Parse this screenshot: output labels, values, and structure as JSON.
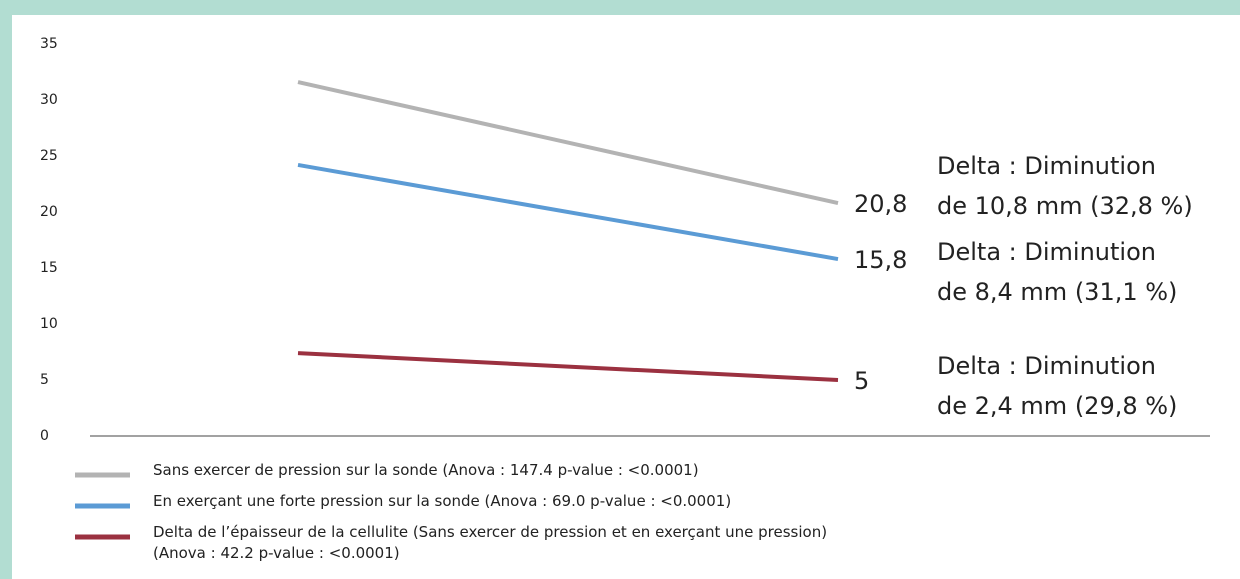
{
  "chart_data": {
    "type": "line",
    "categories": [
      null,
      null
    ],
    "ylim": [
      0,
      35
    ],
    "yticks": [
      0,
      5,
      10,
      15,
      20,
      25,
      30,
      35
    ],
    "grid": false,
    "series": [
      {
        "name": "Sans exercer de pression sur la sonde (Anova : 147.4 p-value : <0.0001)",
        "color": "#b3b3b3",
        "values": [
          31.6,
          20.8
        ],
        "value_labels": [
          null,
          "20,8"
        ],
        "annotation": [
          "Delta : Diminution",
          "de 10,8 mm (32,8 %)"
        ]
      },
      {
        "name": "En exerçant une forte pression sur la sonde (Anova : 69.0 p-value : <0.0001)",
        "color": "#5b9bd5",
        "values": [
          24.2,
          15.8
        ],
        "value_labels": [
          null,
          "15,8"
        ],
        "annotation": [
          "Delta : Diminution",
          "de 8,4 mm (31,1 %)"
        ]
      },
      {
        "name": "Delta de l’épaisseur de la cellulite (Sans exercer de pression et en exerçant une pression)\n(Anova : 42.2 p-value : <0.0001)",
        "color": "#9b3140",
        "values": [
          7.4,
          5
        ],
        "value_labels": [
          null,
          "5"
        ],
        "annotation": [
          "Delta : Diminution",
          "de 2,4 mm (29,8 %)"
        ]
      }
    ]
  }
}
